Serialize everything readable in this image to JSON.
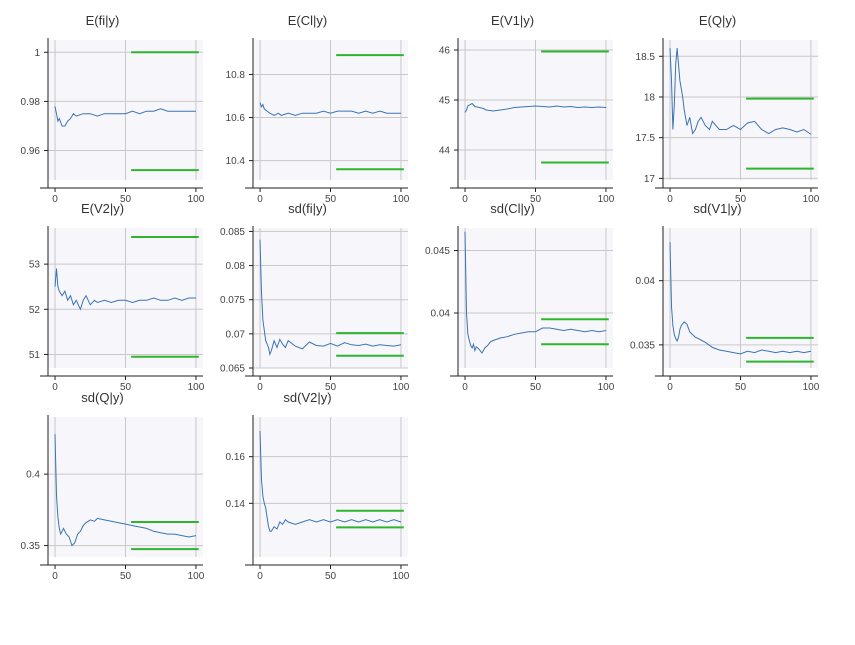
{
  "figure": {
    "colors": {
      "trace": "#3a74b3",
      "bounds": "#2db52d",
      "grid": "#c8c8c8",
      "plot_bg": "#f7f7fb",
      "axis": "#222222"
    }
  },
  "chart_data": [
    {
      "type": "line",
      "title": "E(fi|y)",
      "xlim": [
        -5,
        105
      ],
      "ylim": [
        0.948,
        1.005
      ],
      "xticks": [
        0,
        50,
        100
      ],
      "xtick_labels": [
        "0",
        "50",
        "100"
      ],
      "yticks": [
        0.96,
        0.98,
        1
      ],
      "ytick_labels": [
        "0.96",
        "0.98",
        "1"
      ],
      "series": [
        {
          "x": [
            0,
            1,
            2,
            3,
            5,
            7,
            9,
            11,
            13,
            15,
            20,
            25,
            30,
            35,
            40,
            45,
            50,
            55,
            60,
            65,
            70,
            75,
            80,
            85,
            90,
            95,
            100
          ],
          "y": [
            0.978,
            0.975,
            0.972,
            0.973,
            0.97,
            0.97,
            0.972,
            0.973,
            0.975,
            0.974,
            0.975,
            0.975,
            0.974,
            0.975,
            0.975,
            0.975,
            0.975,
            0.976,
            0.975,
            0.976,
            0.976,
            0.977,
            0.976,
            0.976,
            0.976,
            0.976,
            0.976
          ]
        }
      ],
      "bounds": [
        {
          "x": [
            54,
            102
          ],
          "y": 1.0
        },
        {
          "x": [
            54,
            102
          ],
          "y": 0.952
        }
      ],
      "grid": true
    },
    {
      "type": "line",
      "title": "E(Cl|y)",
      "xlim": [
        -5,
        105
      ],
      "ylim": [
        10.31,
        10.96
      ],
      "xticks": [
        0,
        50,
        100
      ],
      "xtick_labels": [
        "0",
        "50",
        "100"
      ],
      "yticks": [
        10.4,
        10.6,
        10.8
      ],
      "ytick_labels": [
        "10.4",
        "10.6",
        "10.8"
      ],
      "series": [
        {
          "x": [
            0,
            1,
            2,
            3,
            5,
            7,
            10,
            13,
            15,
            20,
            25,
            30,
            35,
            40,
            45,
            50,
            55,
            60,
            65,
            70,
            75,
            80,
            85,
            90,
            95,
            100
          ],
          "y": [
            10.67,
            10.65,
            10.66,
            10.64,
            10.63,
            10.62,
            10.61,
            10.62,
            10.61,
            10.62,
            10.61,
            10.62,
            10.62,
            10.62,
            10.63,
            10.62,
            10.63,
            10.63,
            10.63,
            10.62,
            10.63,
            10.62,
            10.63,
            10.62,
            10.62,
            10.62
          ]
        }
      ],
      "bounds": [
        {
          "x": [
            54,
            102
          ],
          "y": 10.89
        },
        {
          "x": [
            54,
            102
          ],
          "y": 10.36
        }
      ],
      "grid": true
    },
    {
      "type": "line",
      "title": "E(V1|y)",
      "xlim": [
        -5,
        105
      ],
      "ylim": [
        43.4,
        46.2
      ],
      "xticks": [
        0,
        50,
        100
      ],
      "xtick_labels": [
        "0",
        "50",
        "100"
      ],
      "yticks": [
        44,
        45,
        46
      ],
      "ytick_labels": [
        "44",
        "45",
        "46"
      ],
      "series": [
        {
          "x": [
            0,
            1,
            2,
            3,
            5,
            7,
            10,
            13,
            15,
            20,
            25,
            30,
            35,
            40,
            45,
            50,
            55,
            60,
            65,
            70,
            75,
            80,
            85,
            90,
            95,
            100
          ],
          "y": [
            44.75,
            44.8,
            44.88,
            44.9,
            44.93,
            44.87,
            44.85,
            44.83,
            44.8,
            44.78,
            44.8,
            44.82,
            44.85,
            44.86,
            44.87,
            44.88,
            44.87,
            44.86,
            44.88,
            44.86,
            44.87,
            44.85,
            44.86,
            44.85,
            44.86,
            44.85
          ]
        }
      ],
      "bounds": [
        {
          "x": [
            54,
            102
          ],
          "y": 45.97
        },
        {
          "x": [
            54,
            102
          ],
          "y": 43.75
        }
      ],
      "grid": true
    },
    {
      "type": "line",
      "title": "E(Q|y)",
      "xlim": [
        -5,
        105
      ],
      "ylim": [
        16.98,
        18.7
      ],
      "xticks": [
        0,
        50,
        100
      ],
      "xtick_labels": [
        "0",
        "50",
        "100"
      ],
      "yticks": [
        17,
        17.5,
        18,
        18.5
      ],
      "ytick_labels": [
        "17",
        "17.5",
        "18",
        "18.5"
      ],
      "series": [
        {
          "x": [
            0,
            1,
            2,
            3,
            4,
            5,
            6,
            7,
            8,
            9,
            10,
            12,
            14,
            16,
            18,
            20,
            22,
            25,
            28,
            30,
            35,
            40,
            45,
            50,
            55,
            60,
            65,
            70,
            75,
            80,
            85,
            90,
            95,
            100
          ],
          "y": [
            18.6,
            18.2,
            17.6,
            17.9,
            18.4,
            18.6,
            18.4,
            18.2,
            18.1,
            18.0,
            17.85,
            17.65,
            17.75,
            17.55,
            17.6,
            17.7,
            17.75,
            17.65,
            17.6,
            17.7,
            17.6,
            17.6,
            17.65,
            17.6,
            17.68,
            17.7,
            17.6,
            17.55,
            17.6,
            17.62,
            17.6,
            17.57,
            17.6,
            17.54
          ]
        }
      ],
      "bounds": [
        {
          "x": [
            54,
            102
          ],
          "y": 17.98
        },
        {
          "x": [
            54,
            102
          ],
          "y": 17.12
        }
      ],
      "grid": true
    },
    {
      "type": "line",
      "title": "E(V2|y)",
      "xlim": [
        -5,
        105
      ],
      "ylim": [
        50.7,
        53.8
      ],
      "xticks": [
        0,
        50,
        100
      ],
      "xtick_labels": [
        "0",
        "50",
        "100"
      ],
      "yticks": [
        51,
        52,
        53
      ],
      "ytick_labels": [
        "51",
        "52",
        "53"
      ],
      "series": [
        {
          "x": [
            0,
            1,
            2,
            3,
            5,
            7,
            9,
            11,
            13,
            15,
            18,
            20,
            22,
            25,
            28,
            30,
            35,
            40,
            45,
            50,
            55,
            60,
            65,
            70,
            75,
            80,
            85,
            90,
            95,
            100
          ],
          "y": [
            52.5,
            52.9,
            52.5,
            52.4,
            52.3,
            52.4,
            52.2,
            52.3,
            52.1,
            52.2,
            52.0,
            52.2,
            52.3,
            52.1,
            52.2,
            52.15,
            52.2,
            52.15,
            52.2,
            52.2,
            52.15,
            52.2,
            52.2,
            52.25,
            52.2,
            52.2,
            52.25,
            52.2,
            52.25,
            52.25
          ]
        }
      ],
      "bounds": [
        {
          "x": [
            54,
            102
          ],
          "y": 53.6
        },
        {
          "x": [
            54,
            102
          ],
          "y": 50.95
        }
      ],
      "grid": true
    },
    {
      "type": "line",
      "title": "sd(fi|y)",
      "xlim": [
        -5,
        105
      ],
      "ylim": [
        0.065,
        0.0855
      ],
      "xticks": [
        0,
        50,
        100
      ],
      "xtick_labels": [
        "0",
        "50",
        "100"
      ],
      "yticks": [
        0.065,
        0.07,
        0.075,
        0.08,
        0.085
      ],
      "ytick_labels": [
        "0.065",
        "0.07",
        "0.075",
        "0.08",
        "0.085"
      ],
      "series": [
        {
          "x": [
            0,
            1,
            2,
            3,
            4,
            5,
            6,
            7,
            8,
            10,
            12,
            14,
            16,
            18,
            20,
            25,
            30,
            35,
            40,
            45,
            50,
            55,
            60,
            65,
            70,
            75,
            80,
            85,
            90,
            95,
            100
          ],
          "y": [
            0.0838,
            0.076,
            0.072,
            0.0705,
            0.069,
            0.0685,
            0.068,
            0.067,
            0.0675,
            0.069,
            0.068,
            0.0692,
            0.0685,
            0.068,
            0.069,
            0.0682,
            0.0678,
            0.0688,
            0.0683,
            0.0682,
            0.0686,
            0.0682,
            0.0687,
            0.0684,
            0.0683,
            0.0685,
            0.0682,
            0.0684,
            0.0683,
            0.0682,
            0.0684
          ]
        }
      ],
      "bounds": [
        {
          "x": [
            54,
            102
          ],
          "y": 0.0701
        },
        {
          "x": [
            54,
            102
          ],
          "y": 0.0668
        }
      ],
      "grid": true
    },
    {
      "type": "line",
      "title": "sd(Cl|y)",
      "xlim": [
        -5,
        105
      ],
      "ylim": [
        0.0356,
        0.0468
      ],
      "xticks": [
        0,
        50,
        100
      ],
      "xtick_labels": [
        "0",
        "50",
        "100"
      ],
      "yticks": [
        0.04,
        0.045
      ],
      "ytick_labels": [
        "0.04",
        "0.045"
      ],
      "series": [
        {
          "x": [
            0,
            1,
            2,
            3,
            4,
            5,
            6,
            7,
            8,
            10,
            12,
            14,
            16,
            18,
            20,
            25,
            30,
            35,
            40,
            45,
            50,
            55,
            60,
            65,
            70,
            75,
            80,
            85,
            90,
            95,
            100
          ],
          "y": [
            0.0465,
            0.04,
            0.0383,
            0.0378,
            0.0374,
            0.0372,
            0.0375,
            0.037,
            0.0373,
            0.0371,
            0.0368,
            0.0372,
            0.0374,
            0.0377,
            0.0378,
            0.038,
            0.0381,
            0.0383,
            0.0384,
            0.0385,
            0.0385,
            0.0388,
            0.0388,
            0.0387,
            0.0386,
            0.0387,
            0.0386,
            0.0385,
            0.0386,
            0.0385,
            0.0386
          ]
        }
      ],
      "bounds": [
        {
          "x": [
            54,
            102
          ],
          "y": 0.0395
        },
        {
          "x": [
            54,
            102
          ],
          "y": 0.0375
        }
      ],
      "grid": true
    },
    {
      "type": "line",
      "title": "sd(V1|y)",
      "xlim": [
        -5,
        105
      ],
      "ylim": [
        0.0332,
        0.0441
      ],
      "xticks": [
        0,
        50,
        100
      ],
      "xtick_labels": [
        "0",
        "50",
        "100"
      ],
      "yticks": [
        0.035,
        0.04
      ],
      "ytick_labels": [
        "0.035",
        "0.04"
      ],
      "series": [
        {
          "x": [
            0,
            1,
            2,
            3,
            4,
            5,
            6,
            7,
            8,
            10,
            12,
            14,
            16,
            18,
            20,
            25,
            30,
            35,
            40,
            45,
            50,
            55,
            60,
            65,
            70,
            75,
            80,
            85,
            90,
            95,
            100
          ],
          "y": [
            0.043,
            0.038,
            0.0365,
            0.0358,
            0.0355,
            0.0353,
            0.0356,
            0.0362,
            0.0365,
            0.0368,
            0.0366,
            0.036,
            0.0358,
            0.0356,
            0.0355,
            0.0352,
            0.0348,
            0.0346,
            0.0345,
            0.0344,
            0.0343,
            0.0345,
            0.0344,
            0.0346,
            0.0345,
            0.0344,
            0.0345,
            0.0344,
            0.0345,
            0.0344,
            0.0345
          ]
        }
      ],
      "bounds": [
        {
          "x": [
            54,
            102
          ],
          "y": 0.03555
        },
        {
          "x": [
            54,
            102
          ],
          "y": 0.0337
        }
      ],
      "grid": true
    },
    {
      "type": "line",
      "title": "sd(Q|y)",
      "xlim": [
        -5,
        105
      ],
      "ylim": [
        0.342,
        0.44
      ],
      "xticks": [
        0,
        50,
        100
      ],
      "xtick_labels": [
        "0",
        "50",
        "100"
      ],
      "yticks": [
        0.35,
        0.4
      ],
      "ytick_labels": [
        "0.35",
        "0.4"
      ],
      "series": [
        {
          "x": [
            0,
            1,
            2,
            3,
            4,
            5,
            6,
            7,
            8,
            10,
            12,
            14,
            16,
            18,
            20,
            22,
            25,
            28,
            30,
            35,
            40,
            45,
            50,
            55,
            60,
            65,
            70,
            75,
            80,
            85,
            90,
            95,
            100
          ],
          "y": [
            0.428,
            0.385,
            0.37,
            0.362,
            0.358,
            0.36,
            0.362,
            0.36,
            0.358,
            0.356,
            0.35,
            0.352,
            0.358,
            0.36,
            0.364,
            0.366,
            0.368,
            0.367,
            0.369,
            0.368,
            0.367,
            0.366,
            0.365,
            0.364,
            0.363,
            0.362,
            0.36,
            0.359,
            0.358,
            0.358,
            0.357,
            0.356,
            0.357
          ]
        }
      ],
      "bounds": [
        {
          "x": [
            54,
            102
          ],
          "y": 0.3665
        },
        {
          "x": [
            54,
            102
          ],
          "y": 0.3475
        }
      ],
      "grid": true
    },
    {
      "type": "line",
      "title": "sd(V2|y)",
      "xlim": [
        -5,
        105
      ],
      "ylim": [
        0.117,
        0.177
      ],
      "xticks": [
        0,
        50,
        100
      ],
      "xtick_labels": [
        "0",
        "50",
        "100"
      ],
      "yticks": [
        0.14,
        0.16
      ],
      "ytick_labels": [
        "0.14",
        "0.16"
      ],
      "series": [
        {
          "x": [
            0,
            1,
            2,
            3,
            4,
            5,
            6,
            7,
            8,
            10,
            12,
            14,
            16,
            18,
            20,
            25,
            30,
            35,
            40,
            45,
            50,
            55,
            60,
            65,
            70,
            75,
            80,
            85,
            90,
            95,
            100
          ],
          "y": [
            0.171,
            0.15,
            0.143,
            0.14,
            0.138,
            0.134,
            0.13,
            0.128,
            0.128,
            0.13,
            0.129,
            0.132,
            0.131,
            0.133,
            0.132,
            0.131,
            0.132,
            0.133,
            0.132,
            0.133,
            0.132,
            0.133,
            0.132,
            0.133,
            0.132,
            0.133,
            0.132,
            0.133,
            0.132,
            0.133,
            0.132
          ]
        }
      ],
      "bounds": [
        {
          "x": [
            54,
            102
          ],
          "y": 0.1368
        },
        {
          "x": [
            54,
            102
          ],
          "y": 0.1297
        }
      ],
      "grid": true
    }
  ]
}
